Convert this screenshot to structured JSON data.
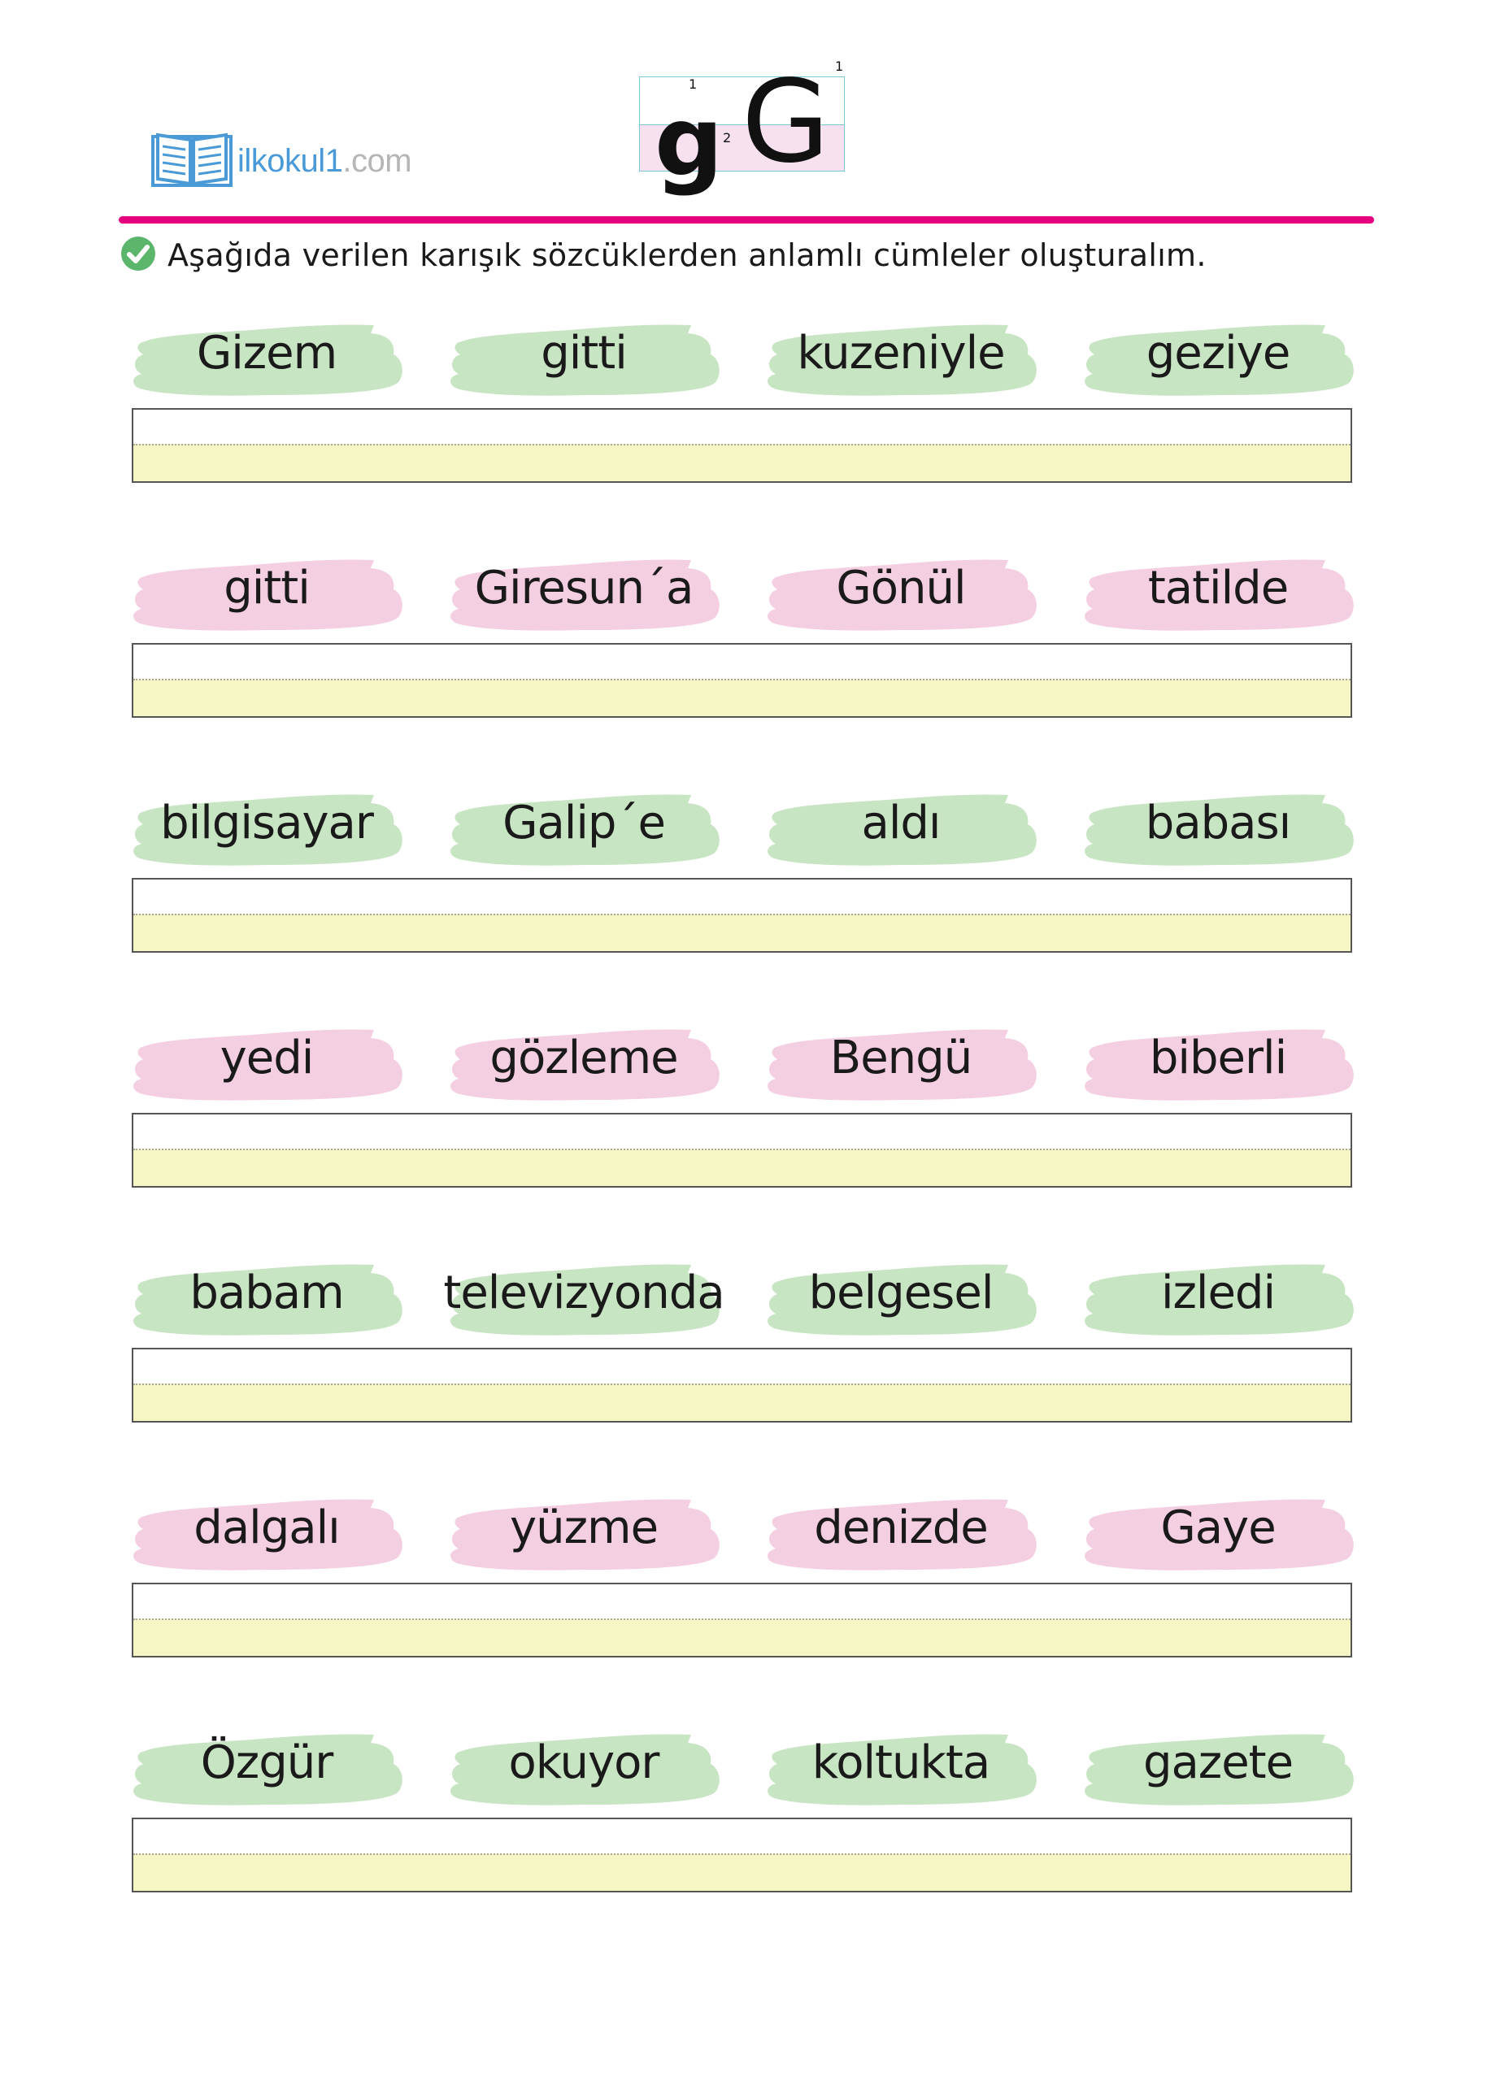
{
  "logo": {
    "name": "ilkokul1",
    "domain": ".com",
    "icon": "open-book-icon"
  },
  "letter": {
    "lower": "g",
    "upper": "G",
    "stroke_numbers": [
      "1",
      "2",
      "1"
    ]
  },
  "instruction": {
    "icon": "check-circle-icon",
    "text": "Aşağıda verilen karışık sözcüklerden anlamlı cümleler oluşturalım."
  },
  "colors": {
    "accent": "#e6007e",
    "green": "#c8e5c3",
    "pink": "#f4cfe2",
    "answer_fill": "#f5f6c4"
  },
  "rows": [
    {
      "color": "green",
      "words": [
        "Gizem",
        "gitti",
        "kuzeniyle",
        "geziye"
      ],
      "answer": ""
    },
    {
      "color": "pink",
      "words": [
        "gitti",
        "Giresun´a",
        "Gönül",
        "tatilde"
      ],
      "answer": ""
    },
    {
      "color": "green",
      "words": [
        "bilgisayar",
        "Galip´e",
        "aldı",
        "babası"
      ],
      "answer": ""
    },
    {
      "color": "pink",
      "words": [
        "yedi",
        "gözleme",
        "Bengü",
        "biberli"
      ],
      "answer": ""
    },
    {
      "color": "green",
      "words": [
        "babam",
        "televizyonda",
        "belgesel",
        "izledi"
      ],
      "answer": ""
    },
    {
      "color": "pink",
      "words": [
        "dalgalı",
        "yüzme",
        "denizde",
        "Gaye"
      ],
      "answer": ""
    },
    {
      "color": "green",
      "words": [
        "Özgür",
        "okuyor",
        "koltukta",
        "gazete"
      ],
      "answer": ""
    }
  ]
}
